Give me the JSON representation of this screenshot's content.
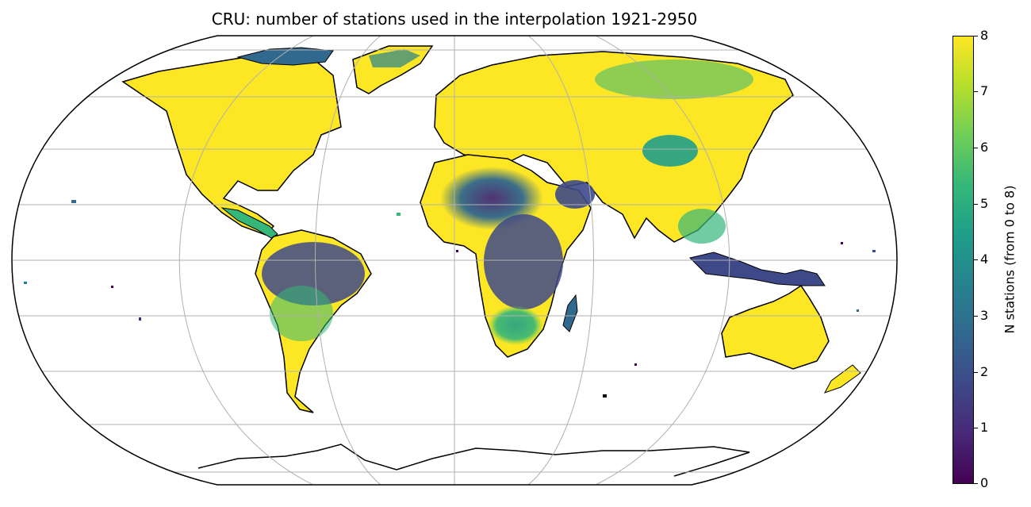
{
  "title": "CRU: number of stations used in the interpolation 1921-2950",
  "colorbar": {
    "label": "N stations (from 0 to 8)",
    "ticks": [
      "0",
      "1",
      "2",
      "3",
      "4",
      "5",
      "6",
      "7",
      "8"
    ],
    "cmap_stops": [
      "#440154",
      "#482878",
      "#3e4989",
      "#31688e",
      "#26828e",
      "#1f9e89",
      "#35b779",
      "#6ece58",
      "#b5de2b",
      "#fde725"
    ]
  },
  "map": {
    "projection": "Robinson",
    "land_color": "#fde725",
    "coastline_color": "#000000",
    "gridline_color": "#b0b0b0"
  }
}
